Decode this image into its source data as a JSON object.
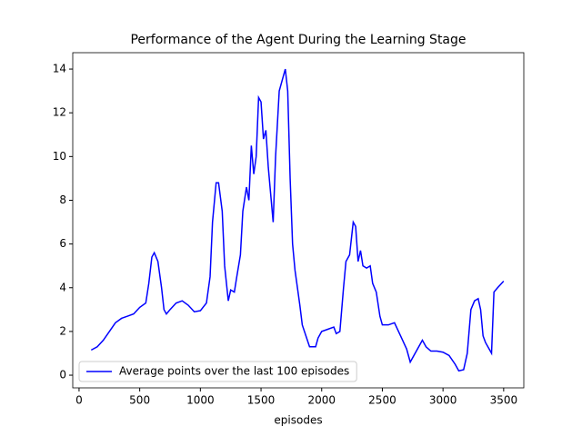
{
  "chart_data": {
    "type": "line",
    "title": "Performance of the Agent During the Learning Stage",
    "x_label": "episodes",
    "x": [
      100,
      150,
      200,
      250,
      300,
      350,
      400,
      450,
      500,
      550,
      575,
      600,
      620,
      650,
      680,
      700,
      720,
      750,
      800,
      850,
      900,
      950,
      1000,
      1050,
      1080,
      1100,
      1130,
      1150,
      1180,
      1200,
      1230,
      1250,
      1280,
      1300,
      1330,
      1350,
      1380,
      1400,
      1420,
      1440,
      1460,
      1480,
      1500,
      1520,
      1540,
      1560,
      1600,
      1620,
      1650,
      1680,
      1700,
      1720,
      1740,
      1760,
      1780,
      1800,
      1820,
      1840,
      1870,
      1900,
      1950,
      1970,
      2000,
      2050,
      2100,
      2120,
      2150,
      2180,
      2200,
      2230,
      2260,
      2280,
      2300,
      2320,
      2340,
      2370,
      2400,
      2420,
      2450,
      2480,
      2500,
      2550,
      2600,
      2650,
      2700,
      2730,
      2760,
      2800,
      2830,
      2860,
      2900,
      2950,
      3000,
      3050,
      3100,
      3130,
      3170,
      3200,
      3230,
      3260,
      3290,
      3310,
      3330,
      3350,
      3380,
      3400,
      3420,
      3450,
      3500
    ],
    "series": [
      {
        "name": "Average points over the last 100 episodes",
        "color": "#0000ff",
        "values": [
          1.15,
          1.3,
          1.6,
          2.0,
          2.4,
          2.6,
          2.7,
          2.8,
          3.1,
          3.3,
          4.2,
          5.4,
          5.6,
          5.2,
          4.0,
          3.0,
          2.8,
          3.0,
          3.3,
          3.4,
          3.2,
          2.9,
          2.95,
          3.3,
          4.5,
          7.0,
          8.8,
          8.8,
          7.5,
          5.0,
          3.4,
          3.9,
          3.8,
          4.5,
          5.5,
          7.5,
          8.6,
          8.0,
          10.5,
          9.2,
          10.0,
          12.7,
          12.5,
          10.8,
          11.2,
          9.5,
          7.0,
          10.0,
          13.0,
          13.6,
          14.0,
          13.0,
          9.0,
          6.0,
          4.8,
          4.0,
          3.2,
          2.3,
          1.8,
          1.3,
          1.3,
          1.7,
          2.0,
          2.1,
          2.2,
          1.9,
          2.0,
          4.0,
          5.2,
          5.5,
          7.0,
          6.8,
          5.2,
          5.7,
          5.0,
          4.9,
          5.0,
          4.2,
          3.8,
          2.7,
          2.3,
          2.3,
          2.4,
          1.8,
          1.2,
          0.6,
          0.9,
          1.3,
          1.6,
          1.3,
          1.1,
          1.1,
          1.05,
          0.9,
          0.5,
          0.2,
          0.25,
          1.0,
          3.0,
          3.4,
          3.5,
          3.0,
          1.8,
          1.5,
          1.2,
          1.0,
          3.8,
          4.0,
          4.3
        ]
      }
    ],
    "xlim": [
      -52,
      3666
    ],
    "ylim": [
      -0.58,
      14.75
    ],
    "xticks": [
      0,
      500,
      1000,
      1500,
      2000,
      2500,
      3000,
      3500
    ],
    "yticks": [
      0,
      2,
      4,
      6,
      8,
      10,
      12,
      14
    ],
    "legend": "lower left"
  }
}
